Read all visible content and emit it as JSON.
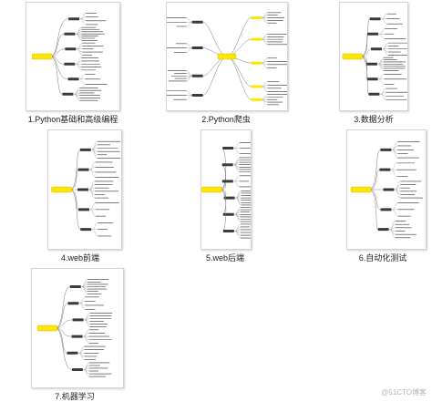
{
  "accent_color": "#ffe600",
  "line_color": "#333333",
  "thumbnails": [
    {
      "label": "1.Python基础和高级编程",
      "layout": "right"
    },
    {
      "label": "2.Python爬虫",
      "layout": "radial"
    },
    {
      "label": "3.数据分析",
      "layout": "right"
    },
    {
      "label": "4.web前端",
      "layout": "right"
    },
    {
      "label": "5.web后端",
      "layout": "right"
    },
    {
      "label": "6.自动化测试",
      "layout": "right"
    },
    {
      "label": "7.机器学习",
      "layout": "right"
    }
  ],
  "watermark": "@51CTO博客"
}
